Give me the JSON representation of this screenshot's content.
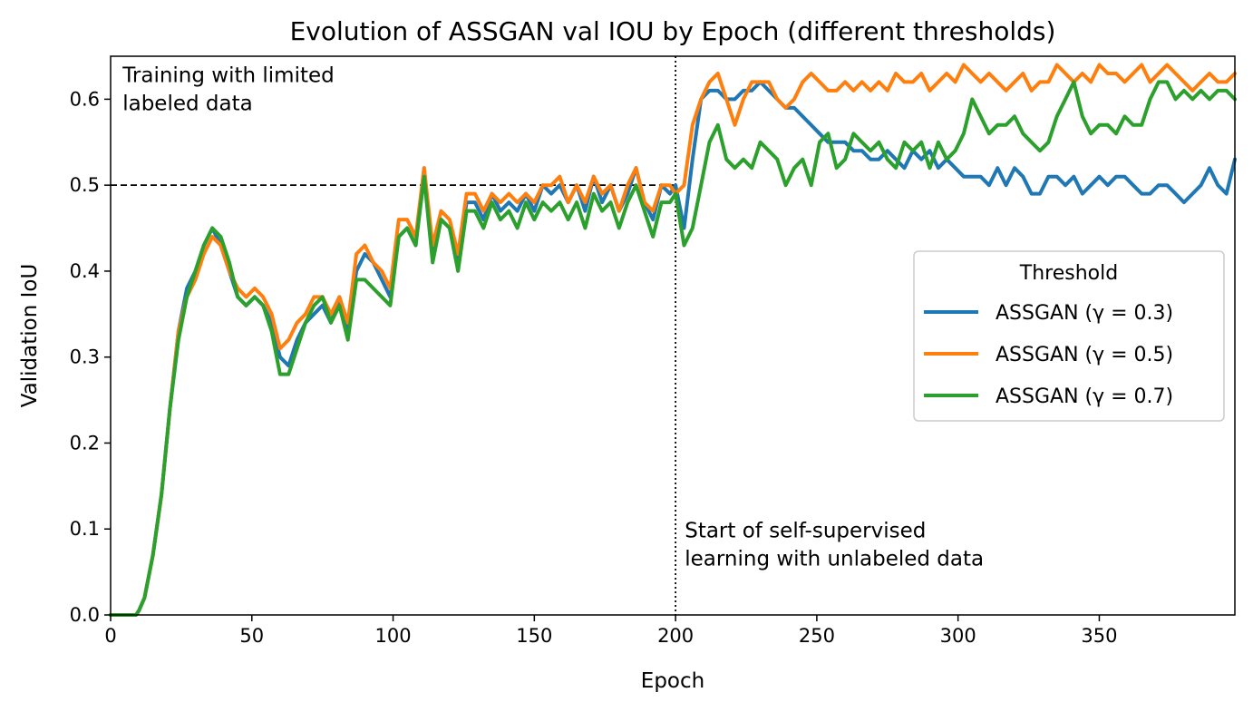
{
  "chart_data": {
    "type": "line",
    "title": "Evolution of ASSGAN val IOU by Epoch (different thresholds)",
    "xlabel": "Epoch",
    "ylabel": "Validation IoU",
    "xlim": [
      0,
      398
    ],
    "ylim": [
      0.0,
      0.65
    ],
    "x_ticks": [
      0,
      50,
      100,
      150,
      200,
      250,
      300,
      350
    ],
    "y_ticks": [
      0.0,
      0.1,
      0.2,
      0.3,
      0.4,
      0.5,
      0.6
    ],
    "x_tick_labels": [
      "0",
      "50",
      "100",
      "150",
      "200",
      "250",
      "300",
      "350"
    ],
    "y_tick_labels": [
      "0.0",
      "0.1",
      "0.2",
      "0.3",
      "0.4",
      "0.5",
      "0.6"
    ],
    "grid": false,
    "legend": {
      "title": "Threshold",
      "placement": "center-right"
    },
    "reference_lines": [
      {
        "orientation": "horizontal",
        "value": 0.5,
        "style": "dashed",
        "color": "#000000"
      },
      {
        "orientation": "vertical",
        "value": 200,
        "style": "dotted",
        "color": "#000000"
      }
    ],
    "annotations": [
      {
        "lines": [
          "Training with limited",
          "labeled data"
        ],
        "x": 2,
        "y": 0.62
      },
      {
        "lines": [
          "Start of self-supervised",
          "learning with unlabeled data"
        ],
        "x": 201,
        "y": 0.09
      }
    ],
    "series": [
      {
        "name": "ASSGAN (γ = 0.3)",
        "color": "#1f77b4",
        "x": [
          0,
          5,
          9,
          10,
          12,
          15,
          18,
          21,
          24,
          27,
          30,
          33,
          36,
          39,
          42,
          45,
          48,
          51,
          54,
          57,
          60,
          63,
          66,
          69,
          72,
          75,
          78,
          81,
          84,
          87,
          90,
          93,
          96,
          99,
          102,
          105,
          108,
          111,
          114,
          117,
          120,
          123,
          126,
          129,
          132,
          135,
          138,
          141,
          144,
          147,
          150,
          153,
          156,
          159,
          162,
          165,
          168,
          171,
          174,
          177,
          180,
          183,
          186,
          189,
          192,
          195,
          198,
          200,
          203,
          206,
          209,
          212,
          215,
          218,
          221,
          224,
          227,
          230,
          233,
          236,
          239,
          242,
          245,
          248,
          251,
          254,
          257,
          260,
          263,
          266,
          269,
          272,
          275,
          278,
          281,
          284,
          287,
          290,
          293,
          296,
          299,
          302,
          305,
          308,
          311,
          314,
          317,
          320,
          323,
          326,
          329,
          332,
          335,
          338,
          341,
          344,
          347,
          350,
          353,
          356,
          359,
          362,
          365,
          368,
          371,
          374,
          377,
          380,
          383,
          386,
          389,
          392,
          395,
          398
        ],
        "values": [
          0.0,
          0.0,
          0.0,
          0.005,
          0.02,
          0.07,
          0.14,
          0.24,
          0.33,
          0.38,
          0.4,
          0.43,
          0.45,
          0.43,
          0.4,
          0.37,
          0.36,
          0.37,
          0.36,
          0.34,
          0.3,
          0.29,
          0.32,
          0.34,
          0.35,
          0.36,
          0.34,
          0.37,
          0.33,
          0.4,
          0.42,
          0.41,
          0.39,
          0.37,
          0.44,
          0.45,
          0.43,
          0.52,
          0.42,
          0.46,
          0.45,
          0.41,
          0.48,
          0.48,
          0.46,
          0.49,
          0.47,
          0.48,
          0.47,
          0.49,
          0.47,
          0.5,
          0.49,
          0.5,
          0.48,
          0.5,
          0.47,
          0.51,
          0.48,
          0.5,
          0.47,
          0.49,
          0.52,
          0.48,
          0.46,
          0.5,
          0.49,
          0.5,
          0.45,
          0.53,
          0.6,
          0.61,
          0.61,
          0.6,
          0.6,
          0.61,
          0.61,
          0.62,
          0.61,
          0.6,
          0.59,
          0.59,
          0.58,
          0.57,
          0.56,
          0.55,
          0.55,
          0.55,
          0.54,
          0.54,
          0.53,
          0.53,
          0.54,
          0.53,
          0.52,
          0.54,
          0.53,
          0.54,
          0.52,
          0.53,
          0.52,
          0.51,
          0.51,
          0.51,
          0.5,
          0.52,
          0.5,
          0.52,
          0.51,
          0.49,
          0.49,
          0.51,
          0.51,
          0.5,
          0.51,
          0.49,
          0.5,
          0.51,
          0.5,
          0.51,
          0.51,
          0.5,
          0.49,
          0.49,
          0.5,
          0.5,
          0.49,
          0.48,
          0.49,
          0.5,
          0.52,
          0.5,
          0.49,
          0.53
        ]
      },
      {
        "name": "ASSGAN (γ = 0.5)",
        "color": "#ff7f0e",
        "x": [
          0,
          5,
          9,
          10,
          12,
          15,
          18,
          21,
          24,
          27,
          30,
          33,
          36,
          39,
          42,
          45,
          48,
          51,
          54,
          57,
          60,
          63,
          66,
          69,
          72,
          75,
          78,
          81,
          84,
          87,
          90,
          93,
          96,
          99,
          102,
          105,
          108,
          111,
          114,
          117,
          120,
          123,
          126,
          129,
          132,
          135,
          138,
          141,
          144,
          147,
          150,
          153,
          156,
          159,
          162,
          165,
          168,
          171,
          174,
          177,
          180,
          183,
          186,
          189,
          192,
          195,
          198,
          200,
          203,
          206,
          209,
          212,
          215,
          218,
          221,
          224,
          227,
          230,
          233,
          236,
          239,
          242,
          245,
          248,
          251,
          254,
          257,
          260,
          263,
          266,
          269,
          272,
          275,
          278,
          281,
          284,
          287,
          290,
          293,
          296,
          299,
          302,
          305,
          308,
          311,
          314,
          317,
          320,
          323,
          326,
          329,
          332,
          335,
          338,
          341,
          344,
          347,
          350,
          353,
          356,
          359,
          362,
          365,
          368,
          371,
          374,
          377,
          380,
          383,
          386,
          389,
          392,
          395,
          398
        ],
        "values": [
          0.0,
          0.0,
          0.0,
          0.005,
          0.02,
          0.07,
          0.14,
          0.24,
          0.33,
          0.37,
          0.39,
          0.42,
          0.44,
          0.43,
          0.4,
          0.38,
          0.37,
          0.38,
          0.37,
          0.35,
          0.31,
          0.32,
          0.34,
          0.35,
          0.37,
          0.37,
          0.35,
          0.37,
          0.34,
          0.42,
          0.43,
          0.41,
          0.4,
          0.38,
          0.46,
          0.46,
          0.44,
          0.52,
          0.43,
          0.47,
          0.46,
          0.42,
          0.49,
          0.49,
          0.47,
          0.49,
          0.48,
          0.49,
          0.48,
          0.49,
          0.48,
          0.5,
          0.5,
          0.51,
          0.48,
          0.5,
          0.48,
          0.51,
          0.49,
          0.5,
          0.47,
          0.5,
          0.52,
          0.48,
          0.47,
          0.5,
          0.5,
          0.49,
          0.5,
          0.57,
          0.6,
          0.62,
          0.63,
          0.6,
          0.57,
          0.6,
          0.62,
          0.62,
          0.62,
          0.6,
          0.59,
          0.6,
          0.62,
          0.63,
          0.62,
          0.61,
          0.61,
          0.62,
          0.61,
          0.62,
          0.61,
          0.62,
          0.61,
          0.63,
          0.62,
          0.62,
          0.63,
          0.61,
          0.62,
          0.63,
          0.62,
          0.64,
          0.63,
          0.62,
          0.63,
          0.62,
          0.61,
          0.62,
          0.63,
          0.61,
          0.62,
          0.62,
          0.64,
          0.63,
          0.62,
          0.63,
          0.62,
          0.64,
          0.63,
          0.63,
          0.62,
          0.63,
          0.64,
          0.62,
          0.63,
          0.64,
          0.63,
          0.62,
          0.61,
          0.62,
          0.63,
          0.62,
          0.62,
          0.63
        ]
      },
      {
        "name": "ASSGAN (γ = 0.7)",
        "color": "#2ca02c",
        "x": [
          0,
          5,
          9,
          10,
          12,
          15,
          18,
          21,
          24,
          27,
          30,
          33,
          36,
          39,
          42,
          45,
          48,
          51,
          54,
          57,
          60,
          63,
          66,
          69,
          72,
          75,
          78,
          81,
          84,
          87,
          90,
          93,
          96,
          99,
          102,
          105,
          108,
          111,
          114,
          117,
          120,
          123,
          126,
          129,
          132,
          135,
          138,
          141,
          144,
          147,
          150,
          153,
          156,
          159,
          162,
          165,
          168,
          171,
          174,
          177,
          180,
          183,
          186,
          189,
          192,
          195,
          198,
          200,
          203,
          206,
          209,
          212,
          215,
          218,
          221,
          224,
          227,
          230,
          233,
          236,
          239,
          242,
          245,
          248,
          251,
          254,
          257,
          260,
          263,
          266,
          269,
          272,
          275,
          278,
          281,
          284,
          287,
          290,
          293,
          296,
          299,
          302,
          305,
          308,
          311,
          314,
          317,
          320,
          323,
          326,
          329,
          332,
          335,
          338,
          341,
          344,
          347,
          350,
          353,
          356,
          359,
          362,
          365,
          368,
          371,
          374,
          377,
          380,
          383,
          386,
          389,
          392,
          395,
          398
        ],
        "values": [
          0.0,
          0.0,
          0.0,
          0.005,
          0.02,
          0.07,
          0.14,
          0.24,
          0.32,
          0.37,
          0.4,
          0.43,
          0.45,
          0.44,
          0.41,
          0.37,
          0.36,
          0.37,
          0.36,
          0.33,
          0.28,
          0.28,
          0.31,
          0.34,
          0.36,
          0.37,
          0.34,
          0.36,
          0.32,
          0.39,
          0.39,
          0.38,
          0.37,
          0.36,
          0.44,
          0.45,
          0.43,
          0.51,
          0.41,
          0.46,
          0.45,
          0.4,
          0.47,
          0.47,
          0.45,
          0.48,
          0.46,
          0.47,
          0.45,
          0.48,
          0.46,
          0.48,
          0.47,
          0.48,
          0.46,
          0.48,
          0.45,
          0.49,
          0.47,
          0.48,
          0.45,
          0.48,
          0.5,
          0.47,
          0.44,
          0.48,
          0.48,
          0.49,
          0.43,
          0.45,
          0.5,
          0.55,
          0.57,
          0.53,
          0.52,
          0.53,
          0.52,
          0.55,
          0.54,
          0.53,
          0.5,
          0.52,
          0.53,
          0.5,
          0.55,
          0.56,
          0.52,
          0.53,
          0.56,
          0.55,
          0.54,
          0.55,
          0.53,
          0.52,
          0.55,
          0.54,
          0.55,
          0.52,
          0.55,
          0.53,
          0.54,
          0.56,
          0.6,
          0.58,
          0.56,
          0.57,
          0.57,
          0.58,
          0.56,
          0.55,
          0.54,
          0.55,
          0.58,
          0.6,
          0.62,
          0.58,
          0.56,
          0.57,
          0.57,
          0.56,
          0.58,
          0.57,
          0.57,
          0.6,
          0.62,
          0.62,
          0.6,
          0.61,
          0.6,
          0.61,
          0.6,
          0.61,
          0.61,
          0.6
        ]
      }
    ]
  }
}
